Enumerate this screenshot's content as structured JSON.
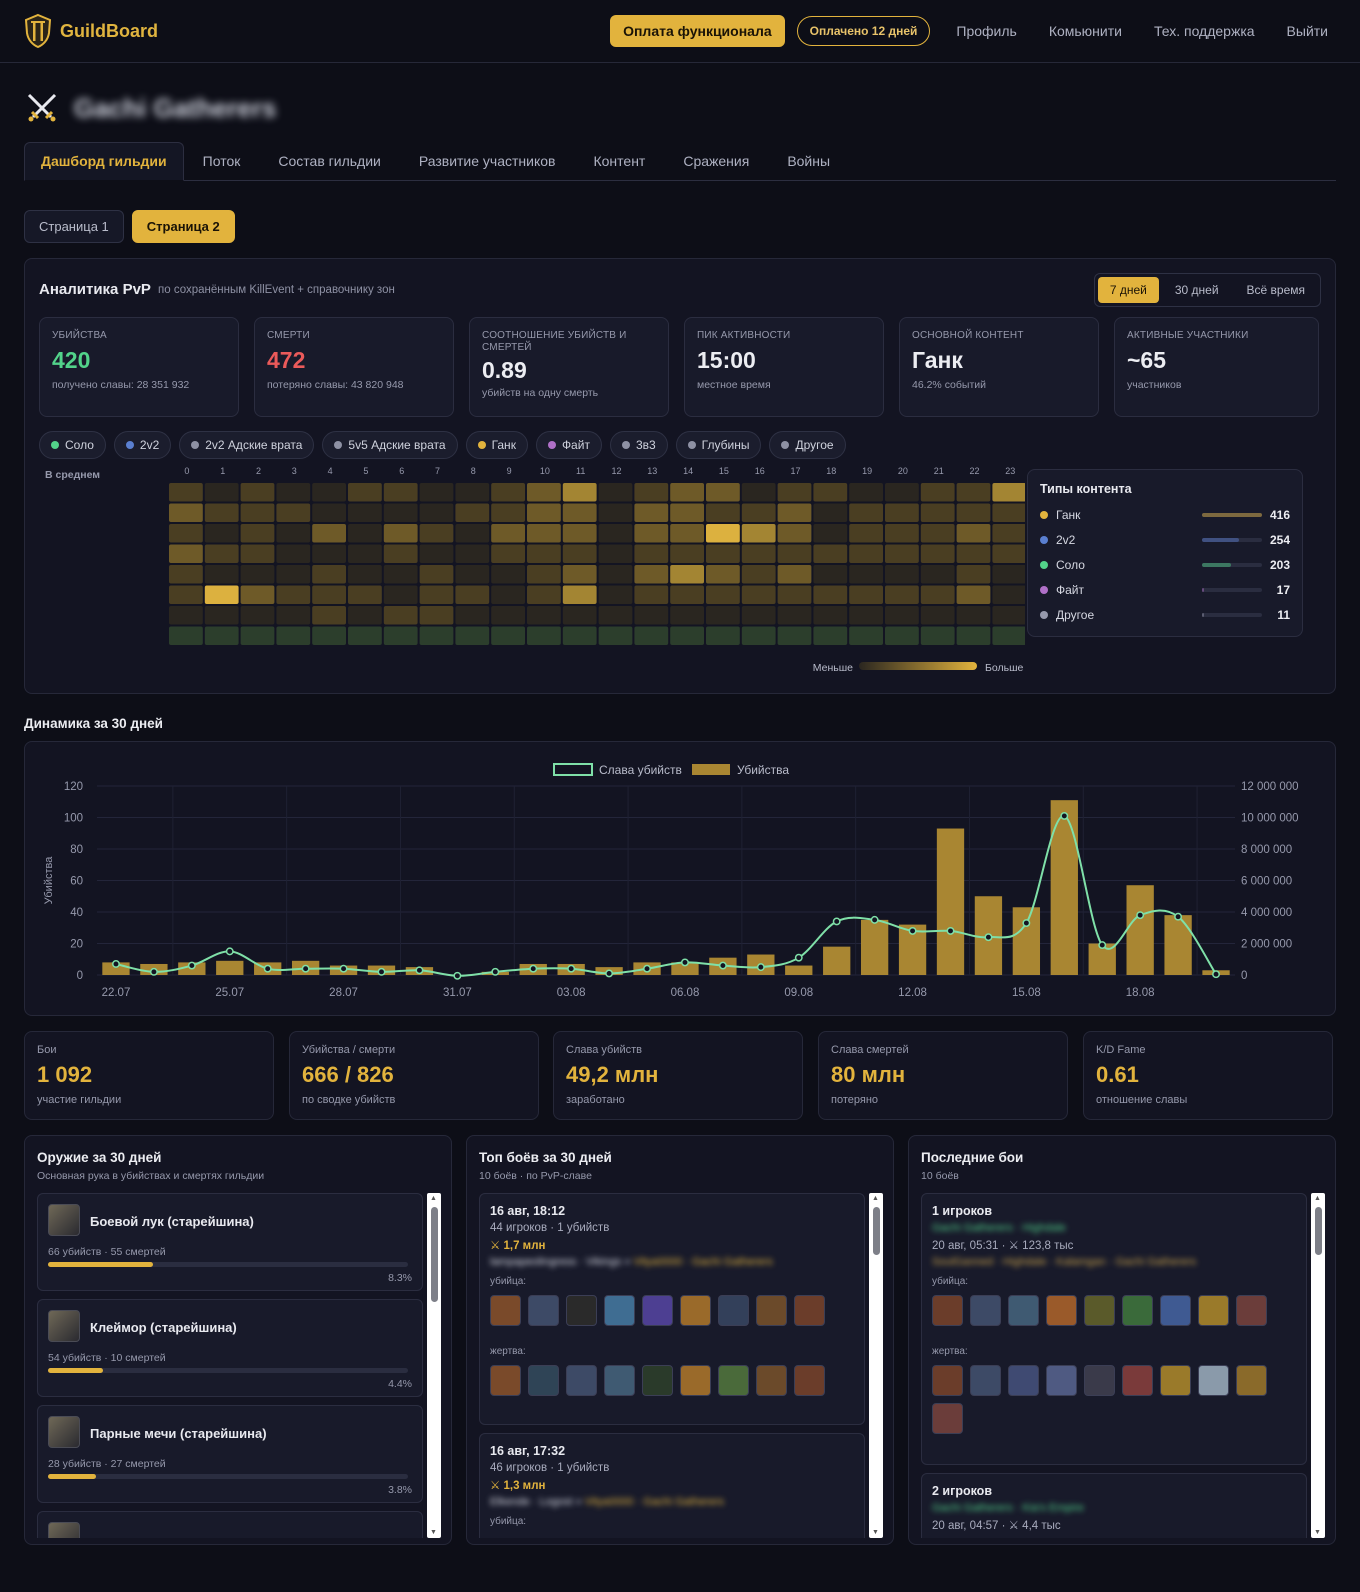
{
  "header": {
    "brand": "GuildBoard",
    "pay_button": "Оплата функционала",
    "paid_badge": "Оплачено 12 дней",
    "nav": [
      "Профиль",
      "Комьюнити",
      "Тех. поддержка",
      "Выйти"
    ]
  },
  "guild": {
    "name": "Gachi Gatherers"
  },
  "tabs": [
    "Дашборд гильдии",
    "Поток",
    "Состав гильдии",
    "Развитие участников",
    "Контент",
    "Сражения",
    "Войны"
  ],
  "pages": [
    "Страница 1",
    "Страница 2"
  ],
  "pvp": {
    "title": "Аналитика PvP",
    "subtitle": "по сохранённым KillEvent + справочнику зон",
    "periods": [
      "7 дней",
      "30 дней",
      "Всё время"
    ],
    "stats": [
      {
        "label": "Убийства",
        "value": "420",
        "note": "получено славы: 28 351 932",
        "color": "#52d38a"
      },
      {
        "label": "Смерти",
        "value": "472",
        "note": "потеряно славы: 43 820 948",
        "color": "#ea5a5a"
      },
      {
        "label": "Соотношение убийств и смертей",
        "value": "0.89",
        "note": "убийств на одну смерть",
        "color": "#ecedf2"
      },
      {
        "label": "Пик активности",
        "value": "15:00",
        "note": "местное время",
        "color": "#ecedf2"
      },
      {
        "label": "Основной контент",
        "value": "Ганк",
        "note": "46.2% событий",
        "color": "#ecedf2"
      },
      {
        "label": "Активные участники",
        "value": "~65",
        "note": "участников",
        "color": "#ecedf2"
      }
    ],
    "filters": [
      {
        "label": "Соло",
        "color": "#52d38a"
      },
      {
        "label": "2v2",
        "color": "#5a7fd0"
      },
      {
        "label": "2v2 Адские врата",
        "color": "#8e91a4"
      },
      {
        "label": "5v5 Адские врата",
        "color": "#8e91a4"
      },
      {
        "label": "Ганк",
        "color": "#e2b33d"
      },
      {
        "label": "Файт",
        "color": "#b070c8"
      },
      {
        "label": "3в3",
        "color": "#8e91a4"
      },
      {
        "label": "Глубины",
        "color": "#8e91a4"
      },
      {
        "label": "Другое",
        "color": "#8e91a4"
      }
    ],
    "heatmap": {
      "row_label": "В среднем",
      "hours": [
        "0",
        "1",
        "2",
        "3",
        "4",
        "5",
        "6",
        "7",
        "8",
        "9",
        "10",
        "11",
        "12",
        "13",
        "14",
        "15",
        "16",
        "17",
        "18",
        "19",
        "20",
        "21",
        "22",
        "23"
      ],
      "rows": [
        [
          2,
          1,
          2,
          1,
          1,
          2,
          2,
          1,
          1,
          2,
          3,
          4,
          1,
          2,
          3,
          3,
          1,
          2,
          2,
          1,
          1,
          2,
          2,
          4
        ],
        [
          3,
          2,
          2,
          2,
          1,
          1,
          1,
          1,
          2,
          2,
          3,
          3,
          1,
          3,
          3,
          2,
          2,
          3,
          1,
          2,
          2,
          2,
          2,
          2
        ],
        [
          2,
          1,
          2,
          1,
          3,
          1,
          3,
          2,
          1,
          3,
          3,
          3,
          1,
          3,
          3,
          5,
          4,
          3,
          1,
          2,
          2,
          2,
          3,
          2
        ],
        [
          3,
          2,
          2,
          1,
          1,
          1,
          2,
          1,
          1,
          2,
          2,
          2,
          1,
          2,
          2,
          2,
          2,
          2,
          2,
          2,
          2,
          2,
          2,
          2
        ],
        [
          2,
          1,
          1,
          1,
          2,
          1,
          1,
          2,
          1,
          1,
          2,
          3,
          1,
          3,
          4,
          3,
          2,
          3,
          1,
          1,
          1,
          1,
          2,
          1
        ],
        [
          2,
          5,
          3,
          2,
          2,
          2,
          1,
          2,
          2,
          1,
          2,
          4,
          1,
          2,
          2,
          2,
          2,
          2,
          2,
          2,
          2,
          2,
          3,
          1
        ],
        [
          1,
          1,
          1,
          1,
          2,
          1,
          2,
          2,
          1,
          1,
          1,
          1,
          1,
          1,
          1,
          1,
          1,
          1,
          1,
          1,
          1,
          1,
          1,
          1
        ]
      ],
      "legend_less": "Меньше",
      "legend_more": "Больше"
    },
    "content_types": {
      "title": "Типы контента",
      "items": [
        {
          "name": "Ганк",
          "count": "416",
          "fraction": 1.0,
          "color": "#e2b33d"
        },
        {
          "name": "2v2",
          "count": "254",
          "fraction": 0.61,
          "color": "#5a7fd0"
        },
        {
          "name": "Соло",
          "count": "203",
          "fraction": 0.49,
          "color": "#52d38a"
        },
        {
          "name": "Файт",
          "count": "17",
          "fraction": 0.04,
          "color": "#b070c8"
        },
        {
          "name": "Другое",
          "count": "11",
          "fraction": 0.03,
          "color": "#9699ac"
        }
      ]
    }
  },
  "dynamics_title": "Динамика за 30 дней",
  "chart_data": {
    "type": "bar",
    "title": "",
    "categories": [
      "22.07",
      "23.07",
      "24.07",
      "25.07",
      "26.07",
      "27.07",
      "28.07",
      "29.07",
      "30.07",
      "31.07",
      "01.08",
      "02.08",
      "03.08",
      "04.08",
      "05.08",
      "06.08",
      "07.08",
      "08.08",
      "09.08",
      "10.08",
      "11.08",
      "12.08",
      "13.08",
      "14.08",
      "15.08",
      "16.08",
      "17.08",
      "18.08",
      "19.08",
      "20.08"
    ],
    "x_tick_labels": [
      "22.07",
      "25.07",
      "28.07",
      "31.07",
      "03.08",
      "06.08",
      "09.08",
      "12.08",
      "15.08",
      "18.08"
    ],
    "series": [
      {
        "name": "Убийства",
        "type": "bar",
        "axis": "left",
        "color": "#a98632",
        "values": [
          8,
          7,
          8,
          9,
          8,
          9,
          6,
          6,
          5,
          0,
          2,
          7,
          7,
          5,
          8,
          8,
          11,
          13,
          6,
          18,
          35,
          32,
          93,
          50,
          43,
          111,
          20,
          57,
          38,
          3
        ]
      },
      {
        "name": "Слава убийств",
        "type": "line",
        "axis": "right",
        "color": "#7fe0a8",
        "values": [
          700000,
          200000,
          600000,
          1500000,
          400000,
          400000,
          400000,
          200000,
          300000,
          -50000,
          200000,
          400000,
          400000,
          100000,
          400000,
          800000,
          600000,
          500000,
          1100000,
          3400000,
          3500000,
          2800000,
          2800000,
          2400000,
          3300000,
          10100000,
          1900000,
          3800000,
          3700000,
          50000
        ]
      }
    ],
    "ylabel": "Убийства",
    "ylim": [
      0,
      120
    ],
    "y_ticks": [
      "0",
      "20",
      "40",
      "60",
      "80",
      "100",
      "120"
    ],
    "y2lim": [
      0,
      12000000
    ],
    "y2_ticks": [
      "0",
      "2 000 000",
      "4 000 000",
      "6 000 000",
      "8 000 000",
      "10 000 000",
      "12 000 000"
    ],
    "legend": "top-center",
    "grid": true
  },
  "kpis": [
    {
      "label": "Бои",
      "value": "1 092",
      "note": "участие гильдии"
    },
    {
      "label": "Убийства / смерти",
      "value": "666 / 826",
      "note": "по сводке убийств"
    },
    {
      "label": "Слава убийств",
      "value": "49,2 млн",
      "note": "заработано"
    },
    {
      "label": "Слава смертей",
      "value": "80 млн",
      "note": "потеряно"
    },
    {
      "label": "K/D Fame",
      "value": "0.61",
      "note": "отношение славы"
    }
  ],
  "weapons": {
    "title": "Оружие за 30 дней",
    "subtitle": "Основная рука в убийствах и смертях гильдии",
    "items": [
      {
        "name": "Боевой лук (старейшина)",
        "meta": "66 убийств · 55 смертей",
        "pct": "8.3%",
        "fraction": 0.083
      },
      {
        "name": "Клеймор (старейшина)",
        "meta": "54 убийств · 10 смертей",
        "pct": "4.4%",
        "fraction": 0.044
      },
      {
        "name": "Парные мечи (старейшина)",
        "meta": "28 убийств · 27 смертей",
        "pct": "3.8%",
        "fraction": 0.038
      }
    ]
  },
  "top_fights": {
    "title": "Топ боёв за 30 дней",
    "subtitle": "10 боёв · по PvP-славе",
    "items": [
      {
        "date": "16 авг, 18:12",
        "meta": "44 игроков · 1 убийств",
        "fame": "⚔ 1,7 млн",
        "killer_names": "lampapeolingress · Vikings",
        "victim_names": "Vitya0000 · Gachi Gatherers",
        "killer_label": "убийца:",
        "victim_label": "жертва:"
      },
      {
        "date": "16 авг, 17:32",
        "meta": "46 игроков · 1 убийств",
        "fame": "⚔ 1,3 млн",
        "killer_names": "Elkende · Logost",
        "victim_names": "Vitya0000 · Gachi Gatherers",
        "killer_label": "убийца:",
        "victim_label": ""
      }
    ]
  },
  "recent_fights": {
    "title": "Последние бои",
    "subtitle": "10 боёв",
    "items": [
      {
        "title": "1 игроков",
        "guilds": "Gachi Gatherers · Highdale",
        "meta": "20 авг, 05:31 · ⚔ 123,8 тыс",
        "names": "SoulGanned · Highdale · Kalamgan · Gachi Gatherers",
        "killer_label": "убийца:",
        "victim_label": "жертва:"
      },
      {
        "title": "2 игроков",
        "guilds": "Gachi Gatherers · Kia's Empire",
        "meta": "20 авг, 04:57 · ⚔ 4,4 тыс",
        "names": "",
        "killer_label": "",
        "victim_label": ""
      }
    ]
  }
}
